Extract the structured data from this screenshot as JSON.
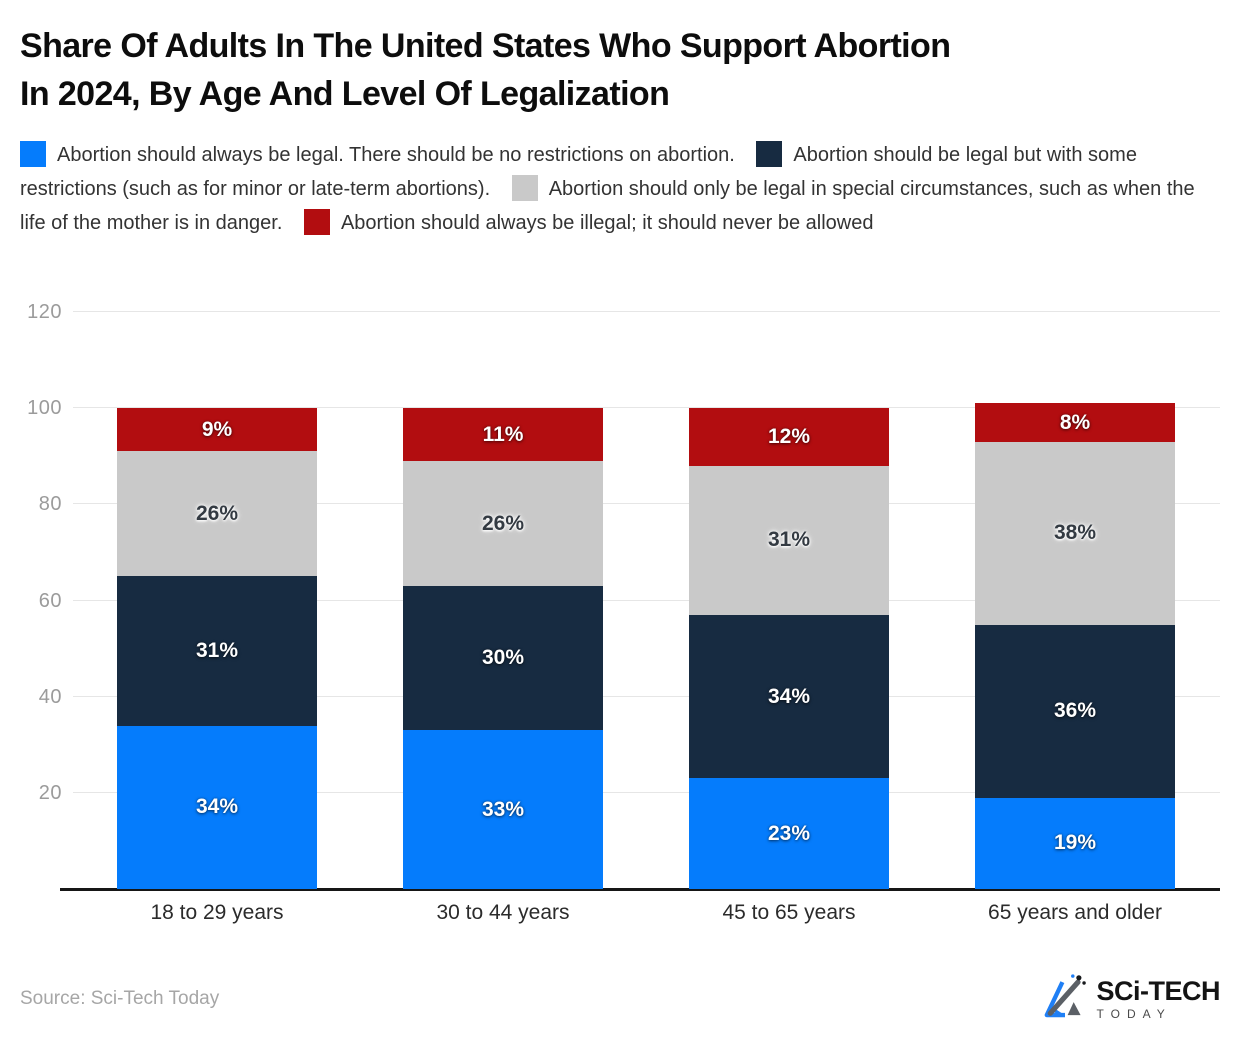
{
  "page": {
    "title_lines": [
      "Share Of Adults In The United States Who Support Abortion",
      "In 2024, By Age And Level Of Legalization"
    ],
    "source": "Source: Sci-Tech Today",
    "logo": {
      "name": "SCi-TECH",
      "subname": "TODAY"
    }
  },
  "colors": {
    "always_legal_blue": "#057cfc",
    "legal_restrictions_navy": "#172b41",
    "special_circumstances_gray": "#c9c9c9",
    "always_illegal_red": "#b20d10",
    "gridline": "#e6e6e6",
    "axis_line": "#161616",
    "tick_label": "#9b9b9b"
  },
  "legend": {
    "items": [
      {
        "color": "#057cfc",
        "label": "Abortion should always be legal. There should be no restrictions on abortion."
      },
      {
        "color": "#172b41",
        "label": "Abortion should be legal but with some restrictions (such as for minor or late-term abortions)."
      },
      {
        "color": "#c9c9c9",
        "label": "Abortion should only be legal in special circumstances, such as when the life of the mother is in danger."
      },
      {
        "color": "#b20d10",
        "label": "Abortion should always be illegal; it should never be allowed"
      }
    ]
  },
  "chart_data": {
    "type": "bar",
    "stacked": true,
    "title": "Share Of Adults In The United States Who Support Abortion In 2024, By Age And Level Of Legalization",
    "categories": [
      "18 to 29 years",
      "30 to 44 years",
      "45 to 65 years",
      "65 years and older"
    ],
    "series": [
      {
        "name": "Abortion should always be legal. There should be no restrictions on abortion.",
        "color": "#057cfc",
        "label_text_color": "#ffffff",
        "values": [
          34,
          33,
          23,
          19
        ]
      },
      {
        "name": "Abortion should be legal but with some restrictions (such as for minor or late-term abortions).",
        "color": "#172b41",
        "label_text_color": "#ffffff",
        "values": [
          31,
          30,
          34,
          36
        ]
      },
      {
        "name": "Abortion should only be legal in special circumstances, such as when the life of the mother is in danger.",
        "color": "#c9c9c9",
        "label_text_color": "#333a42",
        "values": [
          26,
          26,
          31,
          38
        ]
      },
      {
        "name": "Abortion should always be illegal; it should never be allowed",
        "color": "#b20d10",
        "label_text_color": "#ffffff",
        "values": [
          9,
          11,
          12,
          8
        ]
      }
    ],
    "value_suffix": "%",
    "y_ticks": [
      20,
      40,
      60,
      80,
      100,
      120
    ],
    "ylim": [
      0,
      125
    ],
    "grid": true,
    "legend_position": "top",
    "xlabel": "",
    "ylabel": ""
  }
}
